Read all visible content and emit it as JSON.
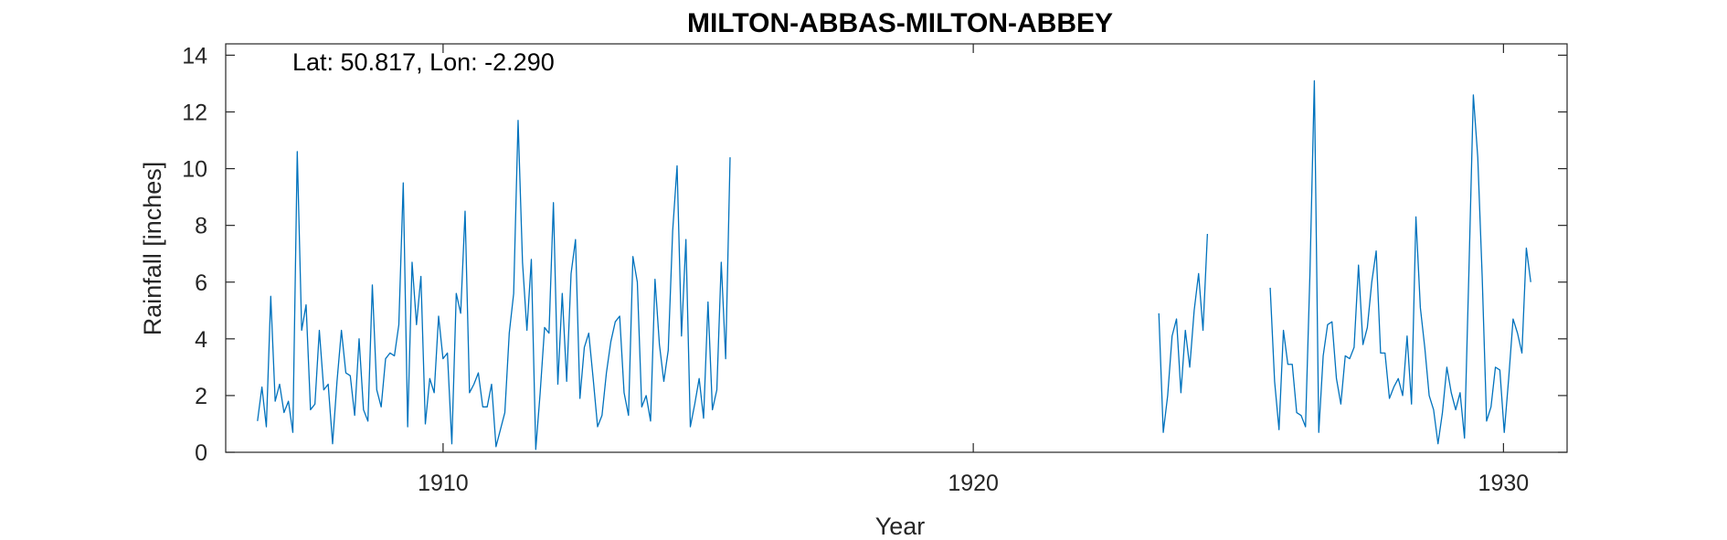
{
  "chart_data": {
    "type": "line",
    "title": "MILTON-ABBAS-MILTON-ABBEY",
    "annotation": "Lat: 50.817, Lon: -2.290",
    "xlabel": "Year",
    "ylabel": "Rainfall [inches]",
    "xlim": [
      1905.9,
      1931.2
    ],
    "ylim": [
      0,
      14.4
    ],
    "xticks": [
      1910,
      1920,
      1930
    ],
    "yticks": [
      0,
      2,
      4,
      6,
      8,
      10,
      12,
      14
    ],
    "grid": false,
    "box": true,
    "color": "#0072BD",
    "series": [
      {
        "segments": [
          {
            "start_year": 1906.5,
            "step": 0.0833,
            "values": [
              1.1,
              2.3,
              0.9,
              5.5,
              1.8,
              2.4,
              1.4,
              1.8,
              0.7,
              10.6,
              4.3,
              5.2,
              1.5,
              1.7,
              4.3,
              2.2,
              2.4,
              0.3,
              2.5,
              4.3,
              2.8,
              2.7,
              1.3,
              4.0,
              1.5,
              1.1,
              5.9,
              2.2,
              1.6,
              3.3,
              3.5,
              3.4,
              4.5,
              9.5,
              0.9,
              6.7,
              4.5,
              6.2,
              1.0,
              2.6,
              2.1,
              4.8,
              3.3,
              3.5,
              0.3,
              5.6,
              4.9,
              8.5,
              2.1,
              2.4,
              2.8,
              1.6,
              1.6,
              2.4,
              0.2,
              0.8,
              1.4,
              4.2,
              5.6,
              11.7,
              6.7,
              4.3,
              6.8,
              0.1,
              2.1,
              4.4,
              4.2,
              8.8,
              2.4,
              5.6,
              2.5,
              6.3,
              7.5,
              1.9,
              3.7,
              4.2,
              2.6,
              0.9,
              1.3,
              2.8,
              3.9,
              4.6,
              4.8,
              2.1,
              1.3,
              6.9,
              6.0,
              1.6,
              2.0,
              1.1,
              6.1,
              3.8,
              2.5,
              3.6,
              7.8,
              10.1,
              4.1,
              7.5,
              0.9,
              1.7,
              2.6,
              1.2,
              5.3,
              1.5,
              2.2,
              6.7,
              3.3,
              10.4
            ]
          },
          {
            "start_year": 1923.5,
            "step": 0.0833,
            "values": [
              4.9,
              0.7,
              2.0,
              4.1,
              4.7,
              2.1,
              4.3,
              3.0,
              5.0,
              6.3,
              4.3,
              7.7
            ]
          },
          {
            "start_year": 1925.6,
            "step": 0.0833,
            "values": [
              5.8,
              2.5,
              0.8,
              4.3,
              3.1,
              3.1,
              1.4,
              1.3,
              0.9,
              6.3,
              13.1,
              0.7,
              3.4,
              4.5,
              4.6,
              2.6,
              1.7,
              3.4,
              3.3,
              3.7,
              6.6,
              3.8,
              4.4,
              6.0,
              7.1,
              3.5,
              3.5,
              1.9,
              2.3,
              2.6,
              2.0,
              4.1,
              1.7,
              8.3,
              5.1,
              3.7,
              2.0,
              1.5,
              0.3,
              1.4,
              3.0,
              2.1,
              1.5,
              2.1,
              0.5,
              6.4,
              12.6,
              10.4,
              6.2,
              1.1,
              1.6,
              3.0,
              2.9,
              0.7,
              2.6,
              4.7,
              4.2,
              3.5,
              7.2,
              6.0
            ]
          }
        ]
      }
    ]
  }
}
